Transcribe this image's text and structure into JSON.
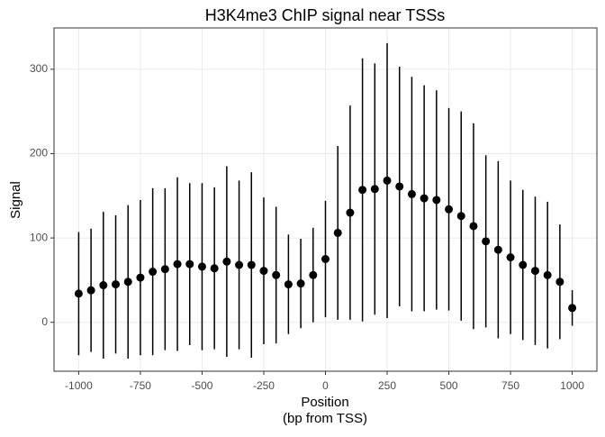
{
  "chart_data": {
    "type": "scatter",
    "title": "H3K4me3 ChIP signal near TSSs",
    "x_label": [
      "Position",
      "(bp from TSS)"
    ],
    "y_label": "Signal",
    "x": [
      -1000,
      -950,
      -900,
      -850,
      -800,
      -750,
      -700,
      -650,
      -600,
      -550,
      -500,
      -450,
      -400,
      -350,
      -300,
      -250,
      -200,
      -150,
      -100,
      -50,
      0,
      50,
      100,
      150,
      200,
      250,
      300,
      350,
      400,
      450,
      500,
      550,
      600,
      650,
      700,
      750,
      800,
      850,
      900,
      950,
      1000
    ],
    "values": [
      34,
      38,
      44,
      45,
      48,
      53,
      60,
      63,
      69,
      69,
      66,
      64,
      72,
      68,
      68,
      61,
      56,
      45,
      46,
      56,
      75,
      106,
      130,
      157,
      158,
      168,
      161,
      152,
      147,
      145,
      134,
      126,
      114,
      96,
      86,
      77,
      68,
      61,
      56,
      48,
      17
    ],
    "errors": [
      73,
      73,
      87,
      82,
      91,
      92,
      99,
      96,
      103,
      96,
      99,
      96,
      113,
      100,
      110,
      87,
      81,
      59,
      53,
      56,
      69,
      103,
      127,
      156,
      149,
      163,
      142,
      139,
      134,
      130,
      120,
      124,
      122,
      102,
      105,
      91,
      89,
      88,
      87,
      68,
      21
    ],
    "color": "#000000",
    "xlim": [
      -1100,
      1100
    ],
    "ylim": [
      -58,
      349
    ],
    "xticks": [
      -1000,
      -750,
      -500,
      -250,
      0,
      250,
      500,
      750,
      1000
    ],
    "yticks": [
      0,
      100,
      200,
      300
    ],
    "grid": true
  }
}
